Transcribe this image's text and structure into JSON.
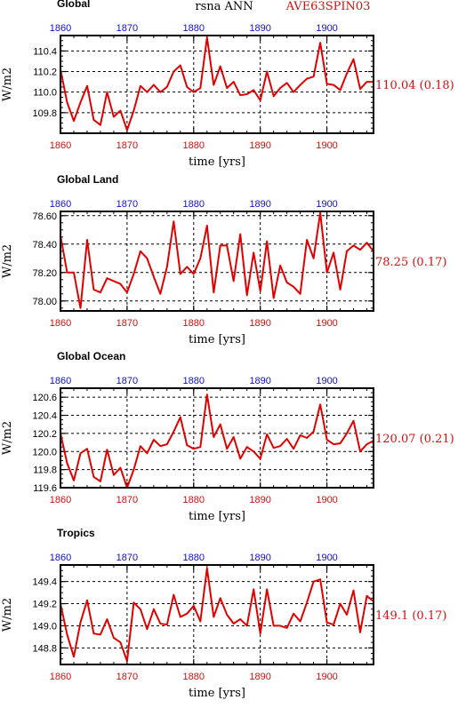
{
  "header": {
    "variable": "rsna ANN",
    "case": "AVE63SPIN03"
  },
  "chart_data": [
    {
      "type": "line",
      "title": "Global",
      "xlabel": "time [yrs]",
      "ylabel": "W/m2",
      "xlim": [
        1860,
        1907
      ],
      "ylim": [
        109.6,
        110.55
      ],
      "xticks": [
        "1860",
        "1870",
        "1880",
        "1890",
        "1900"
      ],
      "yticks": [
        "109.8",
        "110.0",
        "110.2",
        "110.4"
      ],
      "ytick_values": [
        109.8,
        110.0,
        110.2,
        110.4
      ],
      "annotation": "110.04 (0.18)",
      "x": [
        1860,
        1861,
        1862,
        1863,
        1864,
        1865,
        1866,
        1867,
        1868,
        1869,
        1870,
        1871,
        1872,
        1873,
        1874,
        1875,
        1876,
        1877,
        1878,
        1879,
        1880,
        1881,
        1882,
        1883,
        1884,
        1885,
        1886,
        1887,
        1888,
        1889,
        1890,
        1891,
        1892,
        1893,
        1894,
        1895,
        1896,
        1897,
        1898,
        1899,
        1900,
        1901,
        1902,
        1903,
        1904,
        1905,
        1906,
        1907
      ],
      "values": [
        110.22,
        109.9,
        109.72,
        109.9,
        110.06,
        109.73,
        109.68,
        110.0,
        109.76,
        109.82,
        109.63,
        109.82,
        110.06,
        110.0,
        110.07,
        110.0,
        110.05,
        110.2,
        110.26,
        110.05,
        110.0,
        110.04,
        110.53,
        110.07,
        110.25,
        110.04,
        110.1,
        109.97,
        109.98,
        110.02,
        109.92,
        110.2,
        109.96,
        110.04,
        110.09,
        110.0,
        110.07,
        110.13,
        110.15,
        110.48,
        110.08,
        110.07,
        110.02,
        110.18,
        110.32,
        110.03,
        110.1,
        110.1
      ]
    },
    {
      "type": "line",
      "title": "Global Land",
      "xlabel": "time [yrs]",
      "ylabel": "W/m2",
      "xlim": [
        1860,
        1907
      ],
      "ylim": [
        77.93,
        78.63
      ],
      "xticks": [
        "1860",
        "1870",
        "1880",
        "1890",
        "1900"
      ],
      "yticks": [
        "78.00",
        "78.20",
        "78.40",
        "78.60"
      ],
      "ytick_values": [
        78.0,
        78.2,
        78.4,
        78.6
      ],
      "annotation": "78.25 (0.17)",
      "x": [
        1860,
        1861,
        1862,
        1863,
        1864,
        1865,
        1866,
        1867,
        1868,
        1869,
        1870,
        1871,
        1872,
        1873,
        1874,
        1875,
        1876,
        1877,
        1878,
        1879,
        1880,
        1881,
        1882,
        1883,
        1884,
        1885,
        1886,
        1887,
        1888,
        1889,
        1890,
        1891,
        1892,
        1893,
        1894,
        1895,
        1896,
        1897,
        1898,
        1899,
        1900,
        1901,
        1902,
        1903,
        1904,
        1905,
        1906,
        1907
      ],
      "values": [
        78.46,
        78.2,
        78.2,
        77.95,
        78.43,
        78.08,
        78.06,
        78.16,
        78.14,
        78.12,
        78.06,
        78.19,
        78.35,
        78.3,
        78.17,
        78.05,
        78.24,
        78.56,
        78.19,
        78.24,
        78.19,
        78.3,
        78.53,
        78.06,
        78.39,
        78.39,
        78.14,
        78.47,
        78.04,
        78.34,
        78.07,
        78.42,
        78.02,
        78.25,
        78.13,
        78.1,
        78.05,
        78.43,
        78.3,
        78.62,
        78.2,
        78.34,
        78.08,
        78.35,
        78.39,
        78.36,
        78.41,
        78.35
      ]
    },
    {
      "type": "line",
      "title": "Global Ocean",
      "xlabel": "time [yrs]",
      "ylabel": "W/m2",
      "xlim": [
        1860,
        1907
      ],
      "ylim": [
        119.6,
        120.7
      ],
      "xticks": [
        "1860",
        "1870",
        "1880",
        "1890",
        "1900"
      ],
      "yticks": [
        "119.6",
        "119.8",
        "120.0",
        "120.2",
        "120.4",
        "120.6"
      ],
      "ytick_values": [
        119.6,
        119.8,
        120.0,
        120.2,
        120.4,
        120.6
      ],
      "annotation": "120.07 (0.21)",
      "x": [
        1860,
        1861,
        1862,
        1863,
        1864,
        1865,
        1866,
        1867,
        1868,
        1869,
        1870,
        1871,
        1872,
        1873,
        1874,
        1875,
        1876,
        1877,
        1878,
        1879,
        1880,
        1881,
        1882,
        1883,
        1884,
        1885,
        1886,
        1887,
        1888,
        1889,
        1890,
        1891,
        1892,
        1893,
        1894,
        1895,
        1896,
        1897,
        1898,
        1899,
        1900,
        1901,
        1902,
        1903,
        1904,
        1905,
        1906,
        1907
      ],
      "values": [
        120.2,
        119.87,
        119.68,
        119.98,
        120.03,
        119.72,
        119.67,
        120.02,
        119.74,
        119.82,
        119.6,
        119.8,
        120.06,
        119.98,
        120.13,
        120.06,
        120.08,
        120.22,
        120.38,
        120.07,
        120.03,
        120.05,
        120.63,
        120.16,
        120.3,
        120.03,
        120.16,
        119.92,
        120.05,
        120.0,
        119.92,
        120.19,
        120.04,
        120.06,
        120.14,
        120.03,
        120.18,
        120.15,
        120.22,
        120.52,
        120.13,
        120.08,
        120.09,
        120.2,
        120.34,
        120.0,
        120.08,
        120.12
      ]
    },
    {
      "type": "line",
      "title": "Tropics",
      "xlabel": "time [yrs]",
      "ylabel": "W/m2",
      "xlim": [
        1860,
        1907
      ],
      "ylim": [
        148.65,
        149.55
      ],
      "xticks": [
        "1860",
        "1870",
        "1880",
        "1890",
        "1900"
      ],
      "yticks": [
        "148.8",
        "149.0",
        "149.2",
        "149.4"
      ],
      "ytick_values": [
        148.8,
        149.0,
        149.2,
        149.4
      ],
      "annotation": "149.1 (0.17)",
      "x": [
        1860,
        1861,
        1862,
        1863,
        1864,
        1865,
        1866,
        1867,
        1868,
        1869,
        1870,
        1871,
        1872,
        1873,
        1874,
        1875,
        1876,
        1877,
        1878,
        1879,
        1880,
        1881,
        1882,
        1883,
        1884,
        1885,
        1886,
        1887,
        1888,
        1889,
        1890,
        1891,
        1892,
        1893,
        1894,
        1895,
        1896,
        1897,
        1898,
        1899,
        1900,
        1901,
        1902,
        1903,
        1904,
        1905,
        1906,
        1907
      ],
      "values": [
        149.2,
        148.92,
        148.72,
        149.03,
        149.23,
        148.93,
        148.92,
        149.06,
        148.89,
        148.85,
        148.68,
        149.21,
        149.15,
        148.97,
        149.15,
        149.02,
        149.01,
        149.28,
        149.08,
        149.11,
        149.18,
        149.04,
        149.52,
        149.08,
        149.25,
        149.1,
        149.02,
        149.06,
        149.0,
        149.33,
        148.93,
        149.33,
        149.0,
        149.0,
        148.98,
        149.11,
        149.04,
        149.21,
        149.4,
        149.42,
        149.03,
        149.01,
        149.2,
        149.1,
        149.32,
        148.94,
        149.27,
        149.22
      ]
    }
  ]
}
